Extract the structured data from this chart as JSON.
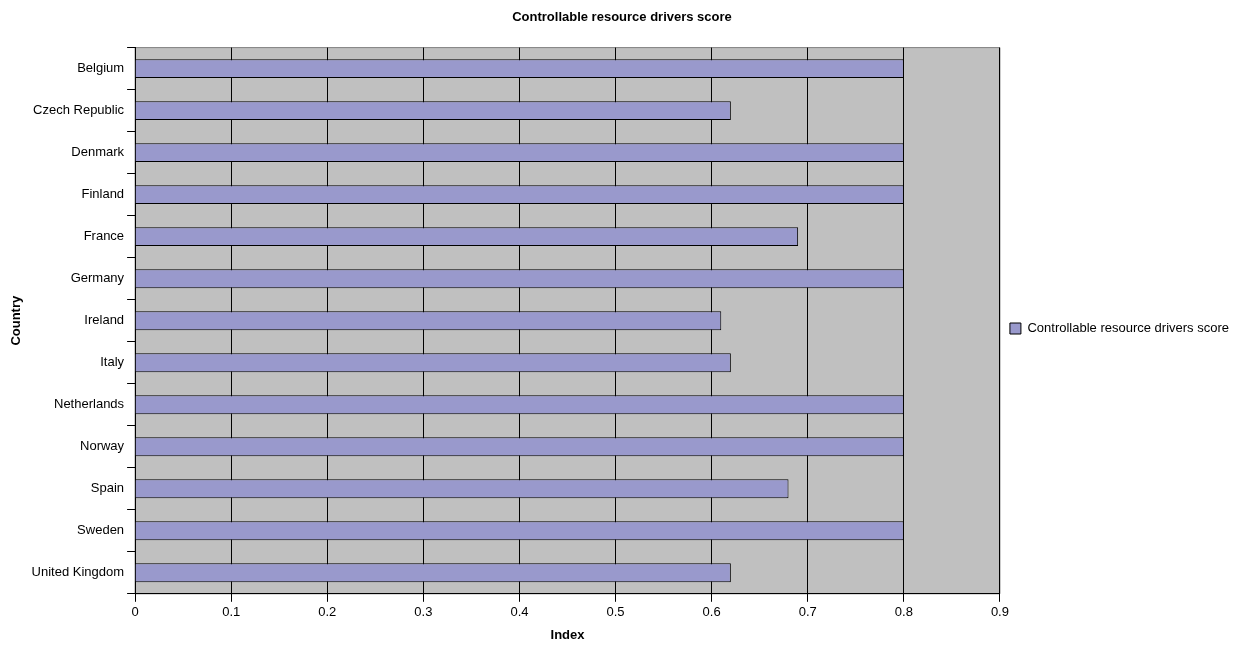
{
  "chart_data": {
    "type": "bar",
    "orientation": "horizontal",
    "title": "Controllable resource drivers score",
    "xlabel": "Index",
    "ylabel": "Country",
    "categories": [
      "Belgium",
      "Czech Republic",
      "Denmark",
      "Finland",
      "France",
      "Germany",
      "Ireland",
      "Italy",
      "Netherlands",
      "Norway",
      "Spain",
      "Sweden",
      "United Kingdom"
    ],
    "series": [
      {
        "name": "Controllable resource drivers score",
        "color": "#9999cc",
        "values": [
          0.8,
          0.62,
          0.8,
          0.8,
          0.69,
          0.8,
          0.61,
          0.62,
          0.8,
          0.8,
          0.68,
          0.8,
          0.62
        ]
      }
    ],
    "xlim": [
      0,
      0.9
    ],
    "xticks": [
      0,
      0.1,
      0.2,
      0.3,
      0.4,
      0.5,
      0.6,
      0.7,
      0.8,
      0.9
    ],
    "grid": "x",
    "legend": "right"
  }
}
